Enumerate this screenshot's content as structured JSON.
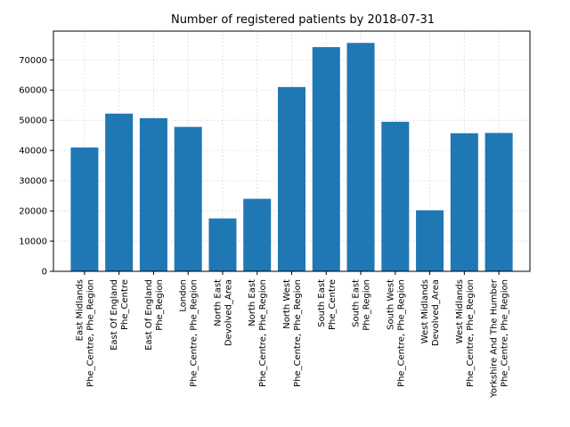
{
  "chart_data": {
    "type": "bar",
    "title": "Number of registered patients by 2018-07-31",
    "xlabel": "",
    "ylabel": "",
    "ylim": [
      0,
      79500
    ],
    "yticks": [
      0,
      10000,
      20000,
      30000,
      40000,
      50000,
      60000,
      70000
    ],
    "grid": true,
    "bar_color": "#1f77b4",
    "categories": [
      [
        "East Midlands",
        "Phe_Centre, Phe_Region"
      ],
      [
        "East Of England",
        "Phe_Centre"
      ],
      [
        "East Of England",
        "Phe_Region"
      ],
      [
        "London",
        "Phe_Centre, Phe_Region"
      ],
      [
        "North East",
        "Devolved_Area"
      ],
      [
        "North East",
        "Phe_Centre, Phe_Region"
      ],
      [
        "North West",
        "Phe_Centre, Phe_Region"
      ],
      [
        "South East",
        "Phe_Centre"
      ],
      [
        "South East",
        "Phe_Region"
      ],
      [
        "South West",
        "Phe_Centre, Phe_Region"
      ],
      [
        "West Midlands",
        "Devolved_Area"
      ],
      [
        "West Midlands",
        "Phe_Centre, Phe_Region"
      ],
      [
        "Yorkshire And The Humber",
        "Phe_Centre, Phe_Region"
      ]
    ],
    "values": [
      41000,
      52200,
      50700,
      47800,
      17500,
      24000,
      61000,
      74200,
      75600,
      49500,
      20200,
      45700,
      45800
    ]
  }
}
